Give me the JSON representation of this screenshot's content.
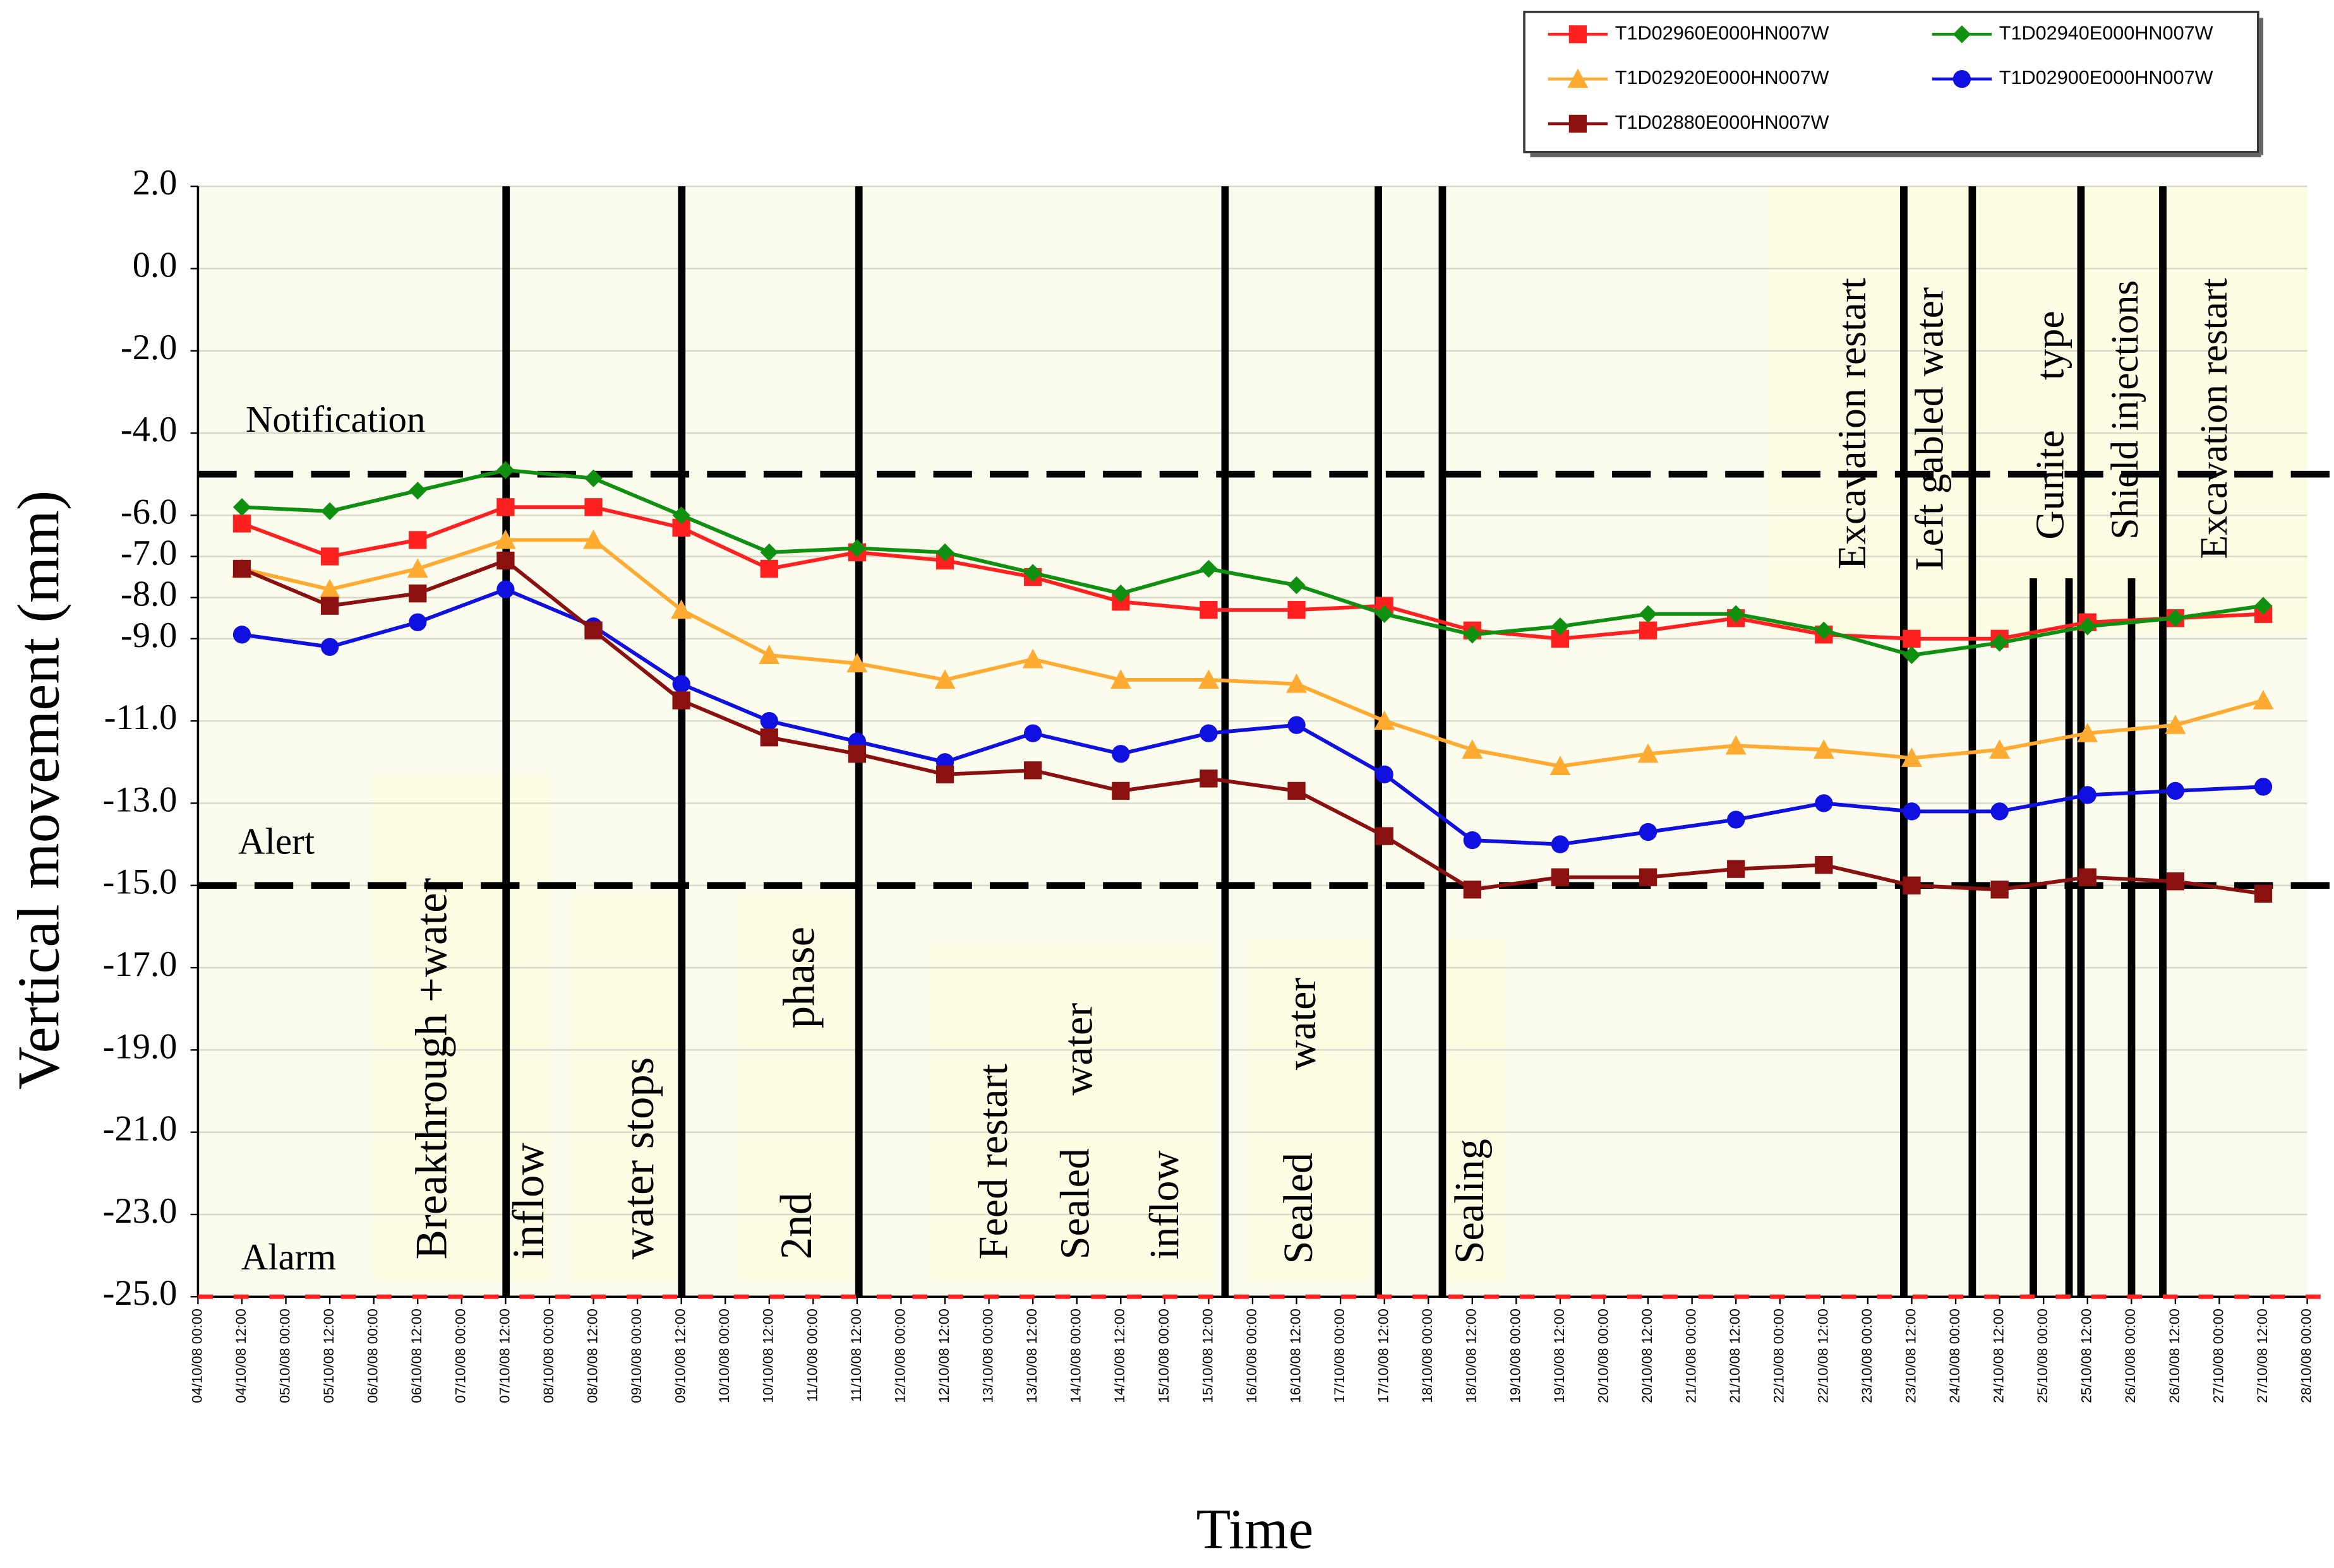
{
  "chart_data": {
    "type": "line",
    "y_label": "Vertical movement (mm)",
    "x_label": "Time",
    "ylim": [
      -25,
      2
    ],
    "yticks": [
      {
        "value": 2,
        "label": "2.0"
      },
      {
        "value": 0,
        "label": "0.0"
      },
      {
        "value": -2,
        "label": "-2.0"
      },
      {
        "value": -4,
        "label": "-4.0"
      },
      {
        "value": -6,
        "label": "-6.0"
      },
      {
        "value": -7,
        "label": "-7.0"
      },
      {
        "value": -8,
        "label": "-8.0"
      },
      {
        "value": -9,
        "label": "-9.0"
      },
      {
        "value": -11,
        "label": "-11.0"
      },
      {
        "value": -13,
        "label": "-13.0"
      },
      {
        "value": -15,
        "label": "-15.0"
      },
      {
        "value": -17,
        "label": "-17.0"
      },
      {
        "value": -19,
        "label": "-19.0"
      },
      {
        "value": -21,
        "label": "-21.0"
      },
      {
        "value": -23,
        "label": "-23.0"
      },
      {
        "value": -25,
        "label": "-25.0"
      }
    ],
    "xlim": [
      "04/10/08 00:00",
      "28/10/08 00:00"
    ],
    "xticks": [
      "04/10/08 00:00",
      "04/10/08 12:00",
      "05/10/08 00:00",
      "05/10/08 12:00",
      "06/10/08 00:00",
      "06/10/08 12:00",
      "07/10/08 00:00",
      "07/10/08 12:00",
      "08/10/08 00:00",
      "08/10/08 12:00",
      "09/10/08 00:00",
      "09/10/08 12:00",
      "10/10/08 00:00",
      "10/10/08 12:00",
      "11/10/08 00:00",
      "11/10/08 12:00",
      "12/10/08 00:00",
      "12/10/08 12:00",
      "13/10/08 00:00",
      "13/10/08 12:00",
      "14/10/08 00:00",
      "14/10/08 12:00",
      "15/10/08 00:00",
      "15/10/08 12:00",
      "16/10/08 00:00",
      "16/10/08 12:00",
      "17/10/08 00:00",
      "17/10/08 12:00",
      "18/10/08 00:00",
      "18/10/08 12:00",
      "19/10/08 00:00",
      "19/10/08 12:00",
      "20/10/08 00:00",
      "20/10/08 12:00",
      "21/10/08 00:00",
      "21/10/08 12:00",
      "22/10/08 00:00",
      "22/10/08 12:00",
      "23/10/08 00:00",
      "23/10/08 12:00",
      "24/10/08 00:00",
      "24/10/08 12:00",
      "25/10/08 00:00",
      "25/10/08 12:00",
      "26/10/08 00:00",
      "26/10/08 12:00",
      "27/10/08 00:00",
      "27/10/08 12:00",
      "28/10/08 00:00"
    ],
    "x": [
      "04/10/08 12:00",
      "05/10/08 12:00",
      "06/10/08 12:00",
      "07/10/08 12:00",
      "08/10/08 12:00",
      "09/10/08 12:00",
      "10/10/08 12:00",
      "11/10/08 12:00",
      "12/10/08 12:00",
      "13/10/08 12:00",
      "14/10/08 12:00",
      "15/10/08 12:00",
      "16/10/08 12:00",
      "17/10/08 12:00",
      "18/10/08 12:00",
      "19/10/08 12:00",
      "20/10/08 12:00",
      "21/10/08 12:00",
      "22/10/08 12:00",
      "23/10/08 12:00",
      "24/10/08 12:00",
      "25/10/08 12:00",
      "26/10/08 12:00",
      "27/10/08 12:00"
    ],
    "series": [
      {
        "name": "T1D02960E000HN007W",
        "color": "#ff2020",
        "marker": "square",
        "values": [
          -6.2,
          -7.0,
          -6.6,
          -5.8,
          -5.8,
          -6.3,
          -7.3,
          -6.9,
          -7.1,
          -7.5,
          -8.1,
          -8.3,
          -8.3,
          -8.2,
          -8.8,
          -9.0,
          -8.8,
          -8.5,
          -8.9,
          -9.0,
          -9.0,
          -8.6,
          -8.5,
          -8.4
        ]
      },
      {
        "name": "T1D02940E000HN007W",
        "color": "#109010",
        "marker": "diamond",
        "values": [
          -5.8,
          -5.9,
          -5.4,
          -4.9,
          -5.1,
          -6.0,
          -6.9,
          -6.8,
          -6.9,
          -7.4,
          -7.9,
          -7.3,
          -7.7,
          -8.4,
          -8.9,
          -8.7,
          -8.4,
          -8.4,
          -8.8,
          -9.4,
          -9.1,
          -8.7,
          -8.5,
          -8.2
        ]
      },
      {
        "name": "T1D02920E000HN007W",
        "color": "#ffaa30",
        "marker": "triangle",
        "values": [
          -7.3,
          -7.8,
          -7.3,
          -6.6,
          -6.6,
          -8.3,
          -9.4,
          -9.6,
          -10.0,
          -9.5,
          -10.0,
          -10.0,
          -10.1,
          -11.0,
          -11.7,
          -12.1,
          -11.8,
          -11.6,
          -11.7,
          -11.9,
          -11.7,
          -11.3,
          -11.1,
          -10.5
        ]
      },
      {
        "name": "T1D02900E000HN007W",
        "color": "#1010e0",
        "marker": "circle",
        "values": [
          -8.9,
          -9.2,
          -8.6,
          -7.8,
          -8.7,
          -10.1,
          -11.0,
          -11.5,
          -12.0,
          -11.3,
          -11.8,
          -11.3,
          -11.1,
          -12.3,
          -13.9,
          -14.0,
          -13.7,
          -13.4,
          -13.0,
          -13.2,
          -13.2,
          -12.8,
          -12.7,
          -12.6
        ]
      },
      {
        "name": "T1D02880E000HN007W",
        "color": "#8b1010",
        "marker": "square",
        "values": [
          -7.3,
          -8.2,
          -7.9,
          -7.1,
          -8.8,
          -10.5,
          -11.4,
          -11.8,
          -12.3,
          -12.2,
          -12.7,
          -12.4,
          -12.7,
          -13.8,
          -15.1,
          -14.8,
          -14.8,
          -14.6,
          -14.5,
          -15.0,
          -15.1,
          -14.8,
          -14.9,
          -15.2
        ]
      }
    ],
    "thresholds": [
      {
        "label": "Notification",
        "value": -5,
        "color": "#000000"
      },
      {
        "label": "Alert",
        "value": -15,
        "color": "#000000"
      },
      {
        "label": "Alarm",
        "value": -25,
        "color": "#ff2020"
      }
    ],
    "annotations": [
      "Breakthrough +water",
      "inflow",
      "water stops",
      "2nd",
      "phase",
      "Feed restart",
      "Sealed",
      "water",
      "inflow",
      "Sealed",
      "water",
      "Sealing",
      "Excavation restart",
      "Left gabled water",
      "Gunite",
      "type",
      "Shield injections",
      "Excavation restart"
    ]
  }
}
